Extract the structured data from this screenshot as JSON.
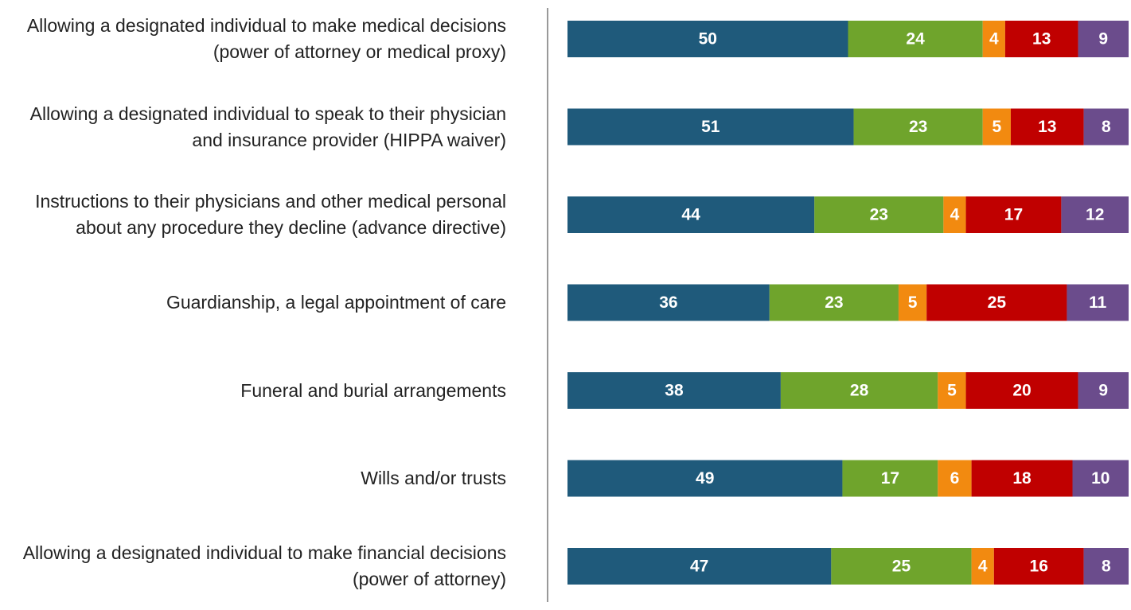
{
  "chart_data": {
    "type": "bar",
    "orientation": "horizontal",
    "stacked": true,
    "categories": [
      "Allowing a designated individual to make medical decisions (power of attorney or medical proxy)",
      "Allowing a designated individual to speak to their physician and insurance provider (HIPPA waiver)",
      "Instructions to their physicians and other medical personal about any procedure they decline (advance directive)",
      "Guardianship, a legal appointment of care",
      "Funeral and burial arrangements",
      "Wills and/or trusts",
      "Allowing a designated individual to make financial decisions (power of attorney)"
    ],
    "series": [
      {
        "color": "#1f5a7b",
        "values": [
          50,
          51,
          44,
          36,
          38,
          49,
          47
        ]
      },
      {
        "color": "#6fa42c",
        "values": [
          24,
          23,
          23,
          23,
          28,
          17,
          25
        ]
      },
      {
        "color": "#f28a10",
        "values": [
          4,
          5,
          4,
          5,
          5,
          6,
          4
        ]
      },
      {
        "color": "#c00000",
        "values": [
          13,
          13,
          17,
          25,
          20,
          18,
          16
        ]
      },
      {
        "color": "#6b4c8c",
        "values": [
          9,
          8,
          12,
          11,
          9,
          10,
          8
        ]
      }
    ],
    "xlim": [
      0,
      100
    ]
  }
}
